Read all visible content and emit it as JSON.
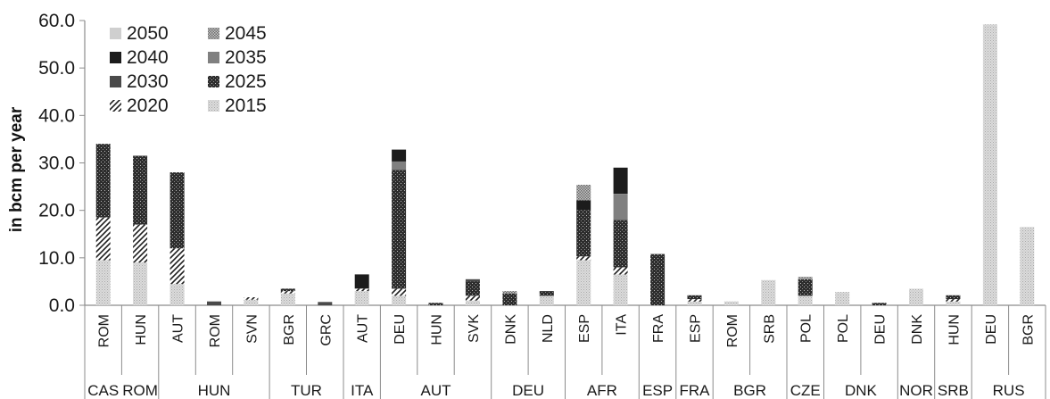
{
  "chart_data": {
    "type": "bar",
    "stacked": true,
    "ylabel": "in bcm per year",
    "ylim": [
      0,
      60
    ],
    "yticks": [
      "0.0",
      "10.0",
      "20.0",
      "30.0",
      "40.0",
      "50.0",
      "60.0"
    ],
    "grid": false,
    "legend_position": "top-left",
    "categories": [
      "ROM",
      "HUN",
      "AUT",
      "ROM",
      "SVN",
      "BGR",
      "GRC",
      "AUT",
      "DEU",
      "HUN",
      "SVK",
      "DNK",
      "NLD",
      "ESP",
      "ITA",
      "FRA",
      "ESP",
      "ROM",
      "SRB",
      "POL",
      "POL",
      "DEU",
      "DNK",
      "HUN",
      "DEU",
      "BGR"
    ],
    "groups": [
      {
        "label": "CAS",
        "span": 1
      },
      {
        "label": "ROM",
        "span": 1
      },
      {
        "label": "HUN",
        "span": 3
      },
      {
        "label": "TUR",
        "span": 2
      },
      {
        "label": "ITA",
        "span": 1
      },
      {
        "label": "AUT",
        "span": 3
      },
      {
        "label": "DEU",
        "span": 2
      },
      {
        "label": "AFR",
        "span": 2
      },
      {
        "label": "ESP",
        "span": 1
      },
      {
        "label": "FRA",
        "span": 1
      },
      {
        "label": "BGR",
        "span": 2
      },
      {
        "label": "CZE",
        "span": 1
      },
      {
        "label": "DNK",
        "span": 2
      },
      {
        "label": "NOR",
        "span": 1
      },
      {
        "label": "SRB",
        "span": 1
      },
      {
        "label": "RUS",
        "span": 2
      }
    ],
    "series": [
      {
        "name": "2015",
        "pattern": "p2015",
        "values": [
          9.5,
          9.0,
          4.5,
          0,
          1.2,
          2.5,
          0,
          3.0,
          2.0,
          0,
          1.0,
          0,
          2.0,
          9.5,
          6.5,
          0,
          0.8,
          0.8,
          5.3,
          2.0,
          2.8,
          0,
          3.5,
          0.8,
          59.2,
          16.5
        ]
      },
      {
        "name": "2020",
        "pattern": "p2020",
        "values": [
          9.0,
          8.0,
          7.5,
          0,
          0.5,
          0.5,
          0,
          0.5,
          1.5,
          0,
          1.0,
          0,
          0,
          0.8,
          1.5,
          0,
          0.5,
          0,
          0,
          0,
          0,
          0,
          0,
          0.5,
          0,
          0
        ]
      },
      {
        "name": "2025",
        "pattern": "p2025",
        "values": [
          15.5,
          14.5,
          16.0,
          0,
          0,
          0.5,
          0,
          0,
          25.0,
          0.5,
          3.0,
          2.5,
          1.0,
          9.8,
          10.0,
          10.8,
          0.8,
          0,
          0,
          3.5,
          0,
          0.5,
          0,
          0.8,
          0,
          0
        ]
      },
      {
        "name": "2030",
        "pattern": "p2030",
        "values": [
          0,
          0,
          0,
          0.8,
          0,
          0,
          0.7,
          0,
          0,
          0,
          0.5,
          0,
          0,
          0,
          0,
          0,
          0,
          0,
          0,
          0,
          0,
          0,
          0,
          0,
          0,
          0
        ]
      },
      {
        "name": "2035",
        "pattern": "p2035",
        "values": [
          0,
          0,
          0,
          0,
          0,
          0,
          0,
          0,
          1.8,
          0,
          0,
          0,
          0,
          0,
          5.5,
          0,
          0,
          0,
          0,
          0,
          0,
          0,
          0,
          0,
          0,
          0
        ]
      },
      {
        "name": "2040",
        "pattern": "p2040",
        "values": [
          0,
          0,
          0,
          0,
          0,
          0,
          0,
          3.0,
          2.5,
          0,
          0,
          0,
          0,
          2.0,
          5.5,
          0,
          0,
          0,
          0,
          0,
          0,
          0,
          0,
          0,
          0,
          0
        ]
      },
      {
        "name": "2045",
        "pattern": "p2045",
        "values": [
          0,
          0,
          0,
          0,
          0,
          0,
          0,
          0,
          0,
          0,
          0,
          0.5,
          0,
          3.3,
          0,
          0,
          0,
          0,
          0,
          0.5,
          0,
          0,
          0,
          0,
          0,
          0
        ]
      },
      {
        "name": "2050",
        "pattern": "p2050",
        "values": [
          0,
          0,
          0,
          0,
          0,
          0,
          0,
          0,
          0,
          0,
          0,
          0,
          0,
          0,
          0,
          0,
          0,
          0,
          0,
          0,
          0,
          0,
          0,
          0,
          0,
          0
        ]
      }
    ],
    "legend": [
      [
        "2050",
        "2045"
      ],
      [
        "2040",
        "2035"
      ],
      [
        "2030",
        "2025"
      ],
      [
        "2020",
        "2015"
      ]
    ]
  }
}
